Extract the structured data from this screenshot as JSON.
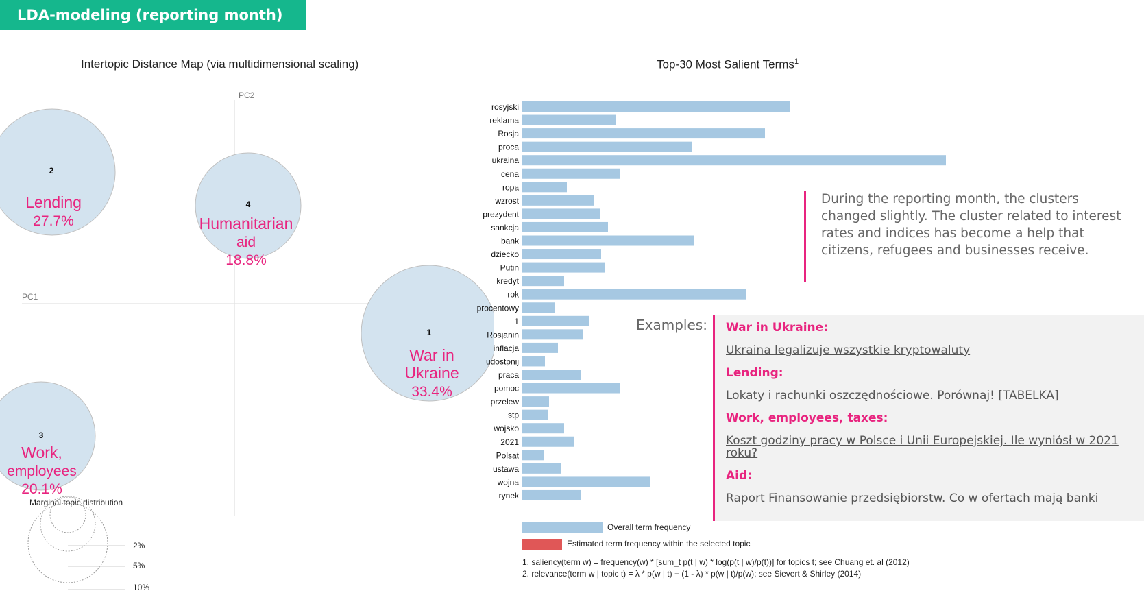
{
  "header": {
    "title": "LDA-modeling (reporting month)"
  },
  "left_chart": {
    "title": "Intertopic Distance Map (via multidimensional scaling)",
    "axis_x": "PC1",
    "axis_y": "PC2"
  },
  "right_chart": {
    "title": "Top-30 Most Salient Terms",
    "title_sup": "1"
  },
  "chart_data": [
    {
      "type": "scatter",
      "title": "Intertopic Distance Map (via multidimensional scaling)",
      "xlabel": "PC1",
      "ylabel": "PC2",
      "points": [
        {
          "id": "1",
          "name": "War in Ukraine",
          "share": "33.4%"
        },
        {
          "id": "2",
          "name": "Lending",
          "share": "27.7%"
        },
        {
          "id": "3",
          "name": "Work, employees",
          "share": "20.1%"
        },
        {
          "id": "4",
          "name": "Humanitarian aid",
          "share": "18.8%"
        }
      ],
      "marginal_title": "Marginal topic distribution",
      "marginal_levels": [
        "2%",
        "5%",
        "10%"
      ]
    },
    {
      "type": "bar",
      "orientation": "horizontal",
      "title": "Top-30 Most Salient Terms",
      "categories": [
        "rosyjski",
        "reklama",
        "Rosja",
        "proca",
        "ukraina",
        "cena",
        "ropa",
        "wzrost",
        "prezydent",
        "sankcja",
        "bank",
        "dziecko",
        "Putin",
        "kredyt",
        "rok",
        "procentowy",
        "1",
        "Rosjanin",
        "inflacja",
        "udostpnij",
        "praca",
        "pomoc",
        "przelew",
        "stp",
        "wojsko",
        "2021",
        "Polsat",
        "ustawa",
        "wojna",
        "rynek"
      ],
      "values": [
        390,
        137,
        354,
        247,
        620,
        142,
        65,
        105,
        114,
        125,
        251,
        115,
        120,
        61,
        327,
        47,
        98,
        89,
        52,
        33,
        85,
        142,
        39,
        37,
        61,
        75,
        32,
        57,
        187,
        85
      ],
      "xlim": [
        0,
        620
      ],
      "legend": [
        "Overall term frequency",
        "Estimated term frequency within the selected topic"
      ]
    }
  ],
  "topics": [
    {
      "num": "2",
      "line1": "Lending",
      "line2": "",
      "pct": "27.7%"
    },
    {
      "num": "4",
      "line1": "Humanitarian",
      "line2": "aid",
      "pct": "18.8%"
    },
    {
      "num": "1",
      "line1": "War in",
      "line2": "Ukraine",
      "pct": "33.4%"
    },
    {
      "num": "3",
      "line1": "Work,",
      "line2": "employees",
      "pct": "20.1%"
    }
  ],
  "marginal": {
    "title": "Marginal topic distribution",
    "levels": [
      "2%",
      "5%",
      "10%"
    ]
  },
  "legend": {
    "overall": "Overall term frequency",
    "estimated": "Estimated term frequency within the selected topic"
  },
  "colors": {
    "bar": "#a6c8e2",
    "circle": "#d3e3ef",
    "accent": "#e8247f",
    "header": "#15b78d",
    "estimated": "#e05757"
  },
  "footnotes": {
    "f1": "1. saliency(term w) = frequency(w) * [sum_t p(t | w) * log(p(t | w)/p(t))] for topics t; see Chuang et. al (2012)",
    "f2": "2. relevance(term w | topic t) = λ * p(w | t) + (1 - λ) * p(w | t)/p(w); see Sievert & Shirley (2014)"
  },
  "note": {
    "text": "During the reporting month, the clusters changed slightly. The cluster related to interest rates and indices has become a help that citizens, refugees and businesses receive."
  },
  "examples": {
    "label": "Examples:",
    "items": [
      {
        "category": "War in Ukraine:",
        "link": "Ukraina legalizuje wszystkie kryptowaluty"
      },
      {
        "category": "Lending:",
        "link": "Lokaty i rachunki oszczędnościowe. Porównaj! [TABELKA]"
      },
      {
        "category": "Work, employees, taxes:",
        "link": "Koszt godziny pracy w Polsce i Unii Europejskiej. Ile wyniósł w 2021 roku?"
      },
      {
        "category": "Aid:",
        "link": "Raport Finansowanie przedsiębiorstw. Co w ofertach mają banki"
      }
    ]
  }
}
